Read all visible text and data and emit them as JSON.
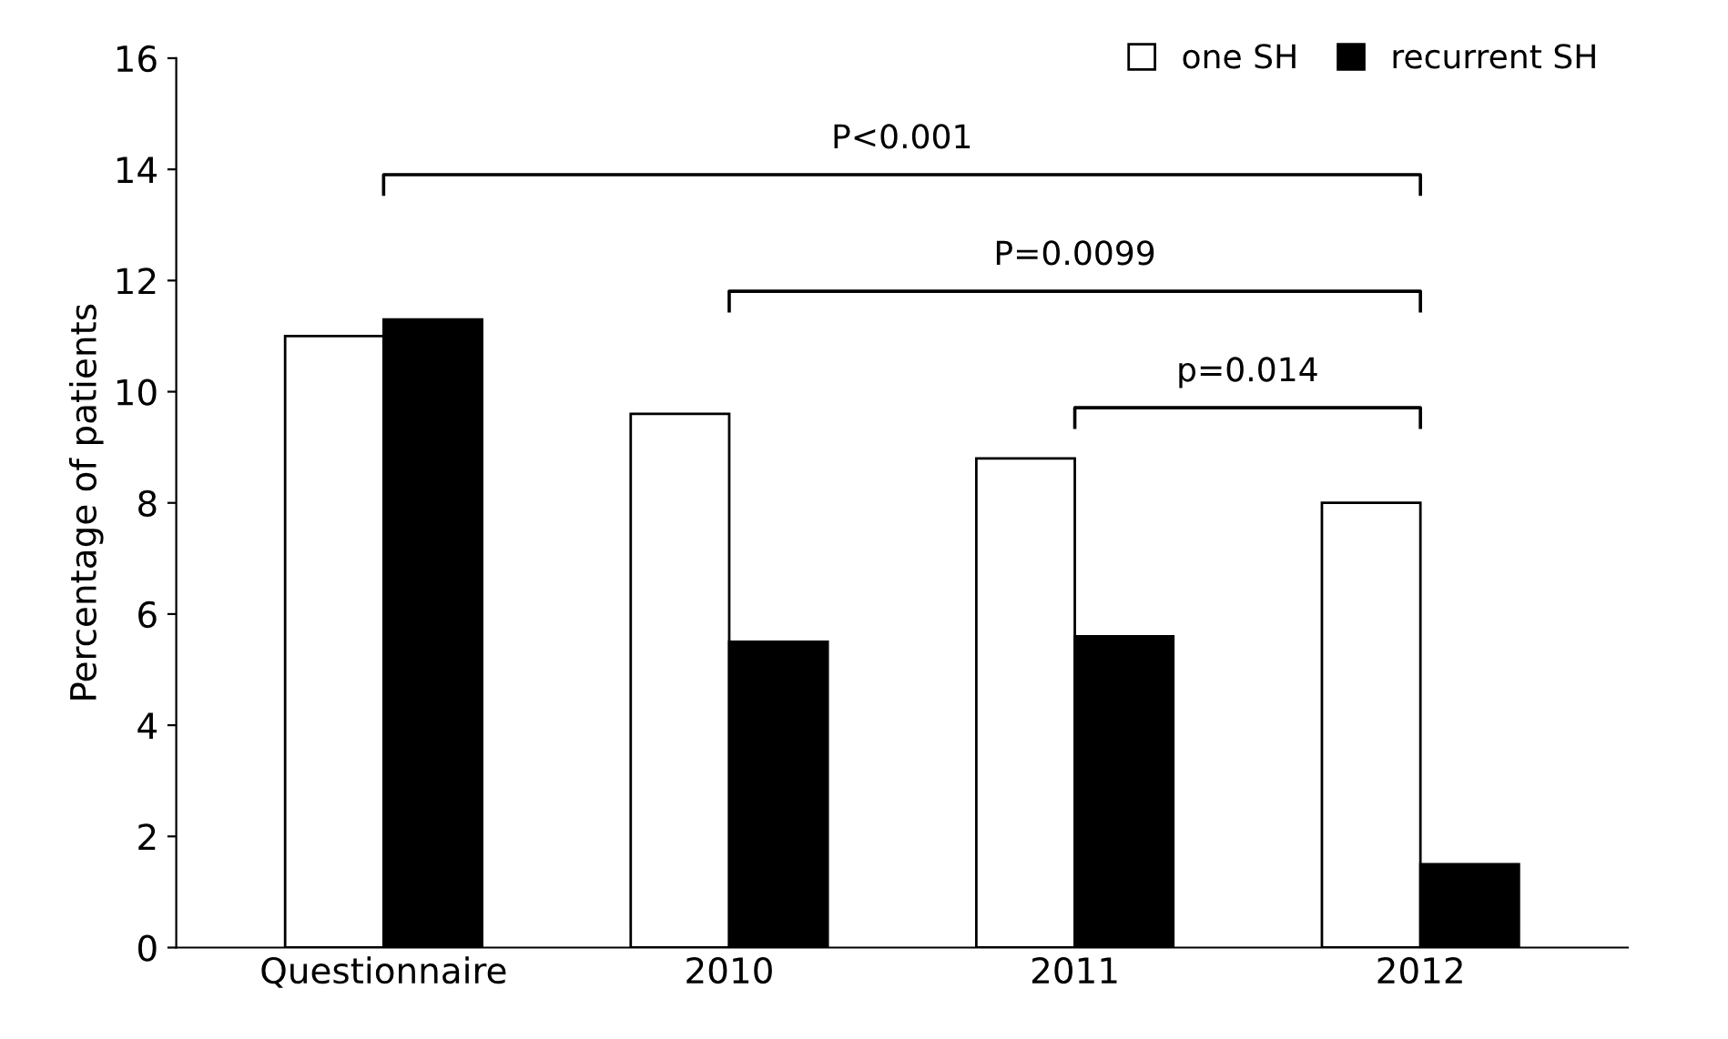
{
  "chart_data": {
    "type": "bar",
    "ylabel": "Percentage of patients",
    "categories": [
      "Questionnaire",
      "2010",
      "2011",
      "2012"
    ],
    "series": [
      {
        "name": "one SH",
        "color": "#ffffff",
        "values": [
          11.0,
          9.6,
          8.8,
          8.0
        ]
      },
      {
        "name": "recurrent SH",
        "color": "#000000",
        "values": [
          11.3,
          5.5,
          5.6,
          1.5
        ]
      }
    ],
    "ylim": [
      0,
      16
    ],
    "yticks": [
      0,
      2,
      4,
      6,
      8,
      10,
      12,
      14,
      16
    ],
    "grid": false,
    "legend": "top right",
    "annotations": [
      "P<0.001",
      "P=0.0099",
      "p=0.014"
    ]
  }
}
